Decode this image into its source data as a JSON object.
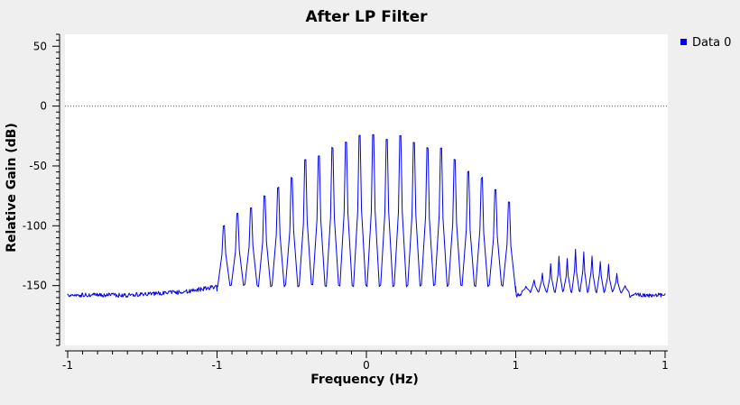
{
  "chart_data": {
    "type": "line",
    "title": "After LP Filter",
    "xlabel": "Frequency (Hz)",
    "ylabel": "Relative Gain (dB)",
    "xlim": [
      -1,
      1
    ],
    "ylim": [
      -200,
      60
    ],
    "x_tick_values": [
      -1,
      -0.5,
      0,
      0.5,
      1
    ],
    "x_tick_labels": [
      "-1",
      "-1",
      "0",
      "1",
      "1"
    ],
    "y_tick_values": [
      50,
      0,
      -50,
      -100,
      -150
    ],
    "y_tick_labels": [
      "50",
      "0",
      "-50",
      "-100",
      "-150"
    ],
    "grid": false,
    "legend_position": "top-right",
    "reference_line": {
      "y": 0,
      "color": "#008080",
      "style": "dotted"
    },
    "series": [
      {
        "name": "Data 0",
        "color": "#0000ee",
        "noise_db": 1.5,
        "floor": [
          [
            -1.0,
            -158
          ],
          [
            -0.8,
            -158
          ],
          [
            -0.6,
            -155
          ],
          [
            -0.51,
            -151
          ],
          [
            -0.5,
            -150
          ],
          [
            0.5,
            -150
          ],
          [
            0.5,
            -158
          ],
          [
            0.63,
            -155
          ],
          [
            0.77,
            -153
          ],
          [
            0.66,
            -155
          ],
          [
            0.7,
            -156
          ],
          [
            0.77,
            -158
          ],
          [
            1.0,
            -158
          ]
        ],
        "band_1": {
          "x_start": -0.5,
          "x_end": 0.5,
          "peak_count": 22,
          "trough_db": -150,
          "edge_db": -155,
          "peaks_db": [
            -100,
            -90,
            -85,
            -75,
            -68,
            -60,
            -45,
            -42,
            -35,
            -30,
            -25,
            -24,
            -28,
            -25,
            -30,
            -35,
            -35,
            -45,
            -55,
            -60,
            -70,
            -80
          ]
        },
        "band_2": {
          "x_start": 0.52,
          "x_end": 0.88,
          "peak_count": 13,
          "trough_db": -155,
          "peaks_db": [
            -150,
            -145,
            -140,
            -132,
            -125,
            -128,
            -120,
            -122,
            -125,
            -130,
            -132,
            -140,
            -150
          ]
        }
      }
    ]
  }
}
